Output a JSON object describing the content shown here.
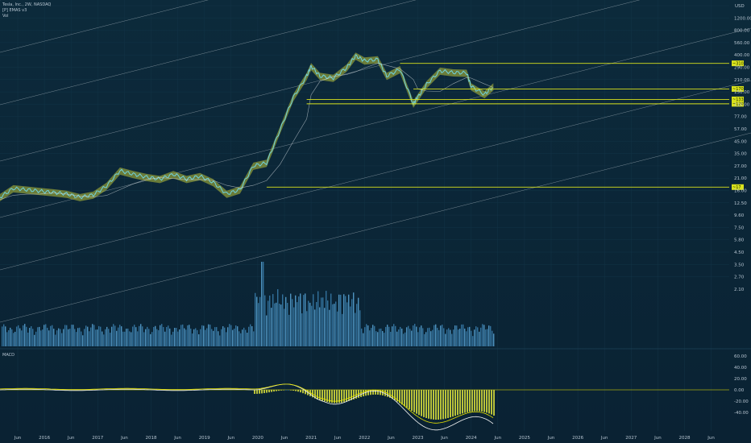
{
  "legend": {
    "symbol": "Tesla, Inc., 2W, NASDAQ",
    "indicator": "[P] EMAS v3",
    "volume": "Vol"
  },
  "currency": "USD",
  "macd_label": "MACD",
  "colors": {
    "background": "#0b2435",
    "price_line": "#6fd3e0",
    "fill_yellow": "#b9c23a",
    "level_line": "#d9e21c",
    "channel": "#c9d2d8",
    "volume": "#3a7fae",
    "volume_alt": "#5aa7d8",
    "macd_line": "#f2f2f2",
    "signal_line": "#e8e500"
  },
  "chart_data": [
    {
      "type": "line",
      "title": "",
      "scale": "log",
      "price_axis_ticks": [
        "1200.00",
        "800.00",
        "560.00",
        "400.00",
        "290.00",
        "210.00",
        "150.00",
        "110.00",
        "77.00",
        "57.00",
        "45.00",
        "35.00",
        "27.00",
        "21.00",
        "16.00",
        "12.50",
        "9.60",
        "7.50",
        "5.80",
        "4.50",
        "3.50",
        "2.70",
        "2.10"
      ],
      "time_axis_ticks": [
        "Jun",
        "2016",
        "Jun",
        "2017",
        "Jun",
        "2018",
        "Jun",
        "2019",
        "Jun",
        "2020",
        "Jun",
        "2021",
        "Jun",
        "2022",
        "Jun",
        "2023",
        "Jun",
        "2024",
        "Jun",
        "2025",
        "Jun",
        "2026",
        "Jun",
        "2027",
        "Jun",
        "2028",
        "Jun"
      ],
      "series": [
        {
          "x": [
            "2015-03",
            "2015-06",
            "2015-09",
            "2015-12",
            "2016-03",
            "2016-06",
            "2016-09",
            "2016-12",
            "2017-03",
            "2017-06",
            "2017-09",
            "2017-12",
            "2018-03",
            "2018-06",
            "2018-09",
            "2018-12",
            "2019-03",
            "2019-06",
            "2019-09",
            "2019-12",
            "2020-03",
            "2020-06",
            "2020-09",
            "2020-12",
            "2021-01",
            "2021-03",
            "2021-06",
            "2021-09",
            "2021-11",
            "2022-01",
            "2022-04",
            "2022-06",
            "2022-09",
            "2022-12",
            "2023-01",
            "2023-03",
            "2023-06",
            "2023-09",
            "2023-12",
            "2024-01",
            "2024-04",
            "2024-06"
          ],
          "values": [
            13.4,
            16.5,
            16.0,
            15.5,
            15.0,
            14.5,
            13.4,
            14.2,
            17.5,
            25.0,
            23.0,
            21.5,
            20.5,
            23.0,
            20.5,
            22.0,
            19.0,
            14.5,
            16.0,
            28.0,
            30.0,
            65.0,
            140.0,
            230.0,
            290.0,
            230.0,
            220.0,
            280.0,
            370.0,
            330.0,
            340.0,
            230.0,
            270.0,
            120.0,
            140.0,
            190.0,
            260.0,
            250.0,
            248.0,
            180.0,
            150.0,
            180.0
          ]
        }
      ],
      "level_lines": [
        "~310",
        "~170",
        "~133",
        "~120",
        "~17"
      ],
      "macd": {
        "axis_ticks": [
          "60.00",
          "40.00",
          "20.00",
          "0.00",
          "-20.00",
          "-40.00"
        ]
      }
    }
  ]
}
